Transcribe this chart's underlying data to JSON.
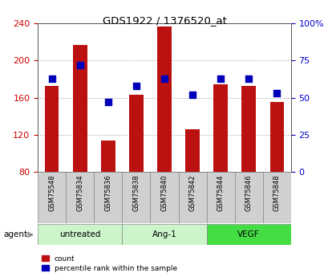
{
  "title": "GDS1922 / 1376520_at",
  "samples": [
    "GSM75548",
    "GSM75834",
    "GSM75836",
    "GSM75838",
    "GSM75840",
    "GSM75842",
    "GSM75844",
    "GSM75846",
    "GSM75848"
  ],
  "counts": [
    173,
    217,
    114,
    163,
    237,
    126,
    174,
    173,
    155
  ],
  "percentiles": [
    63,
    72,
    47,
    58,
    63,
    52,
    63,
    63,
    53
  ],
  "groups": [
    {
      "label": "untreated",
      "indices": [
        0,
        1,
        2
      ],
      "color": "#ccf5cc"
    },
    {
      "label": "Ang-1",
      "indices": [
        3,
        4,
        5
      ],
      "color": "#ccf5cc"
    },
    {
      "label": "VEGF",
      "indices": [
        6,
        7,
        8
      ],
      "color": "#44dd44"
    }
  ],
  "ylim_left": [
    80,
    240
  ],
  "ylim_right": [
    0,
    100
  ],
  "yticks_left": [
    80,
    120,
    160,
    200,
    240
  ],
  "yticks_right": [
    0,
    25,
    50,
    75,
    100
  ],
  "bar_color": "#bb1111",
  "dot_color": "#0000bb",
  "bar_width": 0.5,
  "dot_size": 28,
  "grid_color": "#999999",
  "legend_items": [
    "count",
    "percentile rank within the sample"
  ],
  "agent_label": "agent",
  "left_tick_color": "#cc0000",
  "right_tick_color": "#0000cc",
  "sample_box_color": "#d0d0d0",
  "sample_box_edge": "#888888"
}
